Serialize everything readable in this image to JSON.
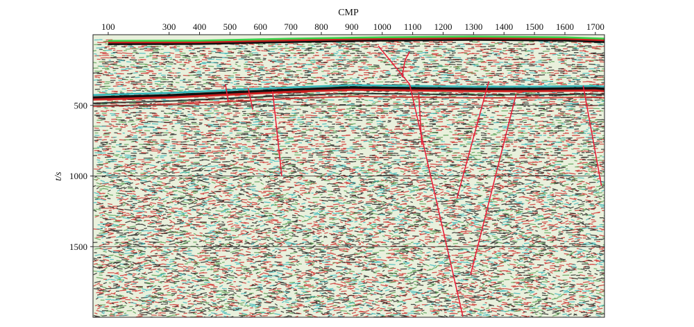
{
  "chart_data": {
    "type": "heatmap",
    "xlabel": "CMP",
    "ylabel": "t/s",
    "x_ticks": [
      100,
      300,
      400,
      500,
      600,
      700,
      800,
      900,
      1000,
      1100,
      1200,
      1300,
      1400,
      1500,
      1600,
      1700
    ],
    "y_ticks": [
      500,
      1000,
      1500
    ],
    "xlim": [
      50,
      1730
    ],
    "ylim": [
      0,
      2000
    ],
    "y_inverted": true,
    "gridlines_y": [
      500,
      1000,
      1500
    ],
    "grid": false,
    "colors": {
      "wavelet_positive": "#cc1f1f",
      "wavelet_negative": "#111111",
      "background": "#e9f0dc",
      "noise_green": "#4c9a48",
      "noise_cyan": "#2fb4b8",
      "fault": "#e8203a",
      "seafloor_green": "#39d14a"
    },
    "horizons": [
      {
        "kind": "seafloor",
        "points": [
          [
            100,
            45
          ],
          [
            400,
            44
          ],
          [
            700,
            30
          ],
          [
            1000,
            20
          ],
          [
            1300,
            15
          ],
          [
            1600,
            20
          ],
          [
            1730,
            30
          ]
        ]
      },
      {
        "kind": "strong_reflector",
        "points": [
          [
            50,
            445
          ],
          [
            300,
            430
          ],
          [
            500,
            410
          ],
          [
            700,
            390
          ],
          [
            900,
            375
          ],
          [
            1100,
            380
          ],
          [
            1300,
            385
          ],
          [
            1500,
            385
          ],
          [
            1700,
            380
          ],
          [
            1730,
            385
          ]
        ]
      }
    ],
    "faults": [
      {
        "points": [
          [
            987,
            80
          ],
          [
            1090,
            350
          ],
          [
            1265,
            1995
          ]
        ]
      },
      {
        "points": [
          [
            1065,
            300
          ],
          [
            1075,
            180
          ],
          [
            1090,
            120
          ]
        ]
      },
      {
        "points": [
          [
            1120,
            420
          ],
          [
            1130,
            780
          ]
        ]
      },
      {
        "points": [
          [
            1245,
            1160
          ],
          [
            1350,
            330
          ]
        ]
      },
      {
        "points": [
          [
            1290,
            1700
          ],
          [
            1440,
            420
          ]
        ]
      },
      {
        "points": [
          [
            1660,
            360
          ],
          [
            1720,
            1070
          ]
        ]
      },
      {
        "points": [
          [
            640,
            400
          ],
          [
            670,
            1000
          ]
        ]
      },
      {
        "points": [
          [
            485,
            350
          ],
          [
            495,
            480
          ]
        ]
      },
      {
        "points": [
          [
            560,
            380
          ],
          [
            575,
            530
          ]
        ]
      }
    ]
  }
}
